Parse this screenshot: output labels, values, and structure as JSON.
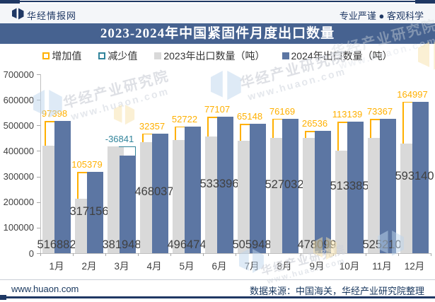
{
  "header": {
    "brand": "华经情报网",
    "tagline": "专业严谨 ● 客观科学"
  },
  "title": "2023-2024年中国紧固件月度出口数量",
  "legend": [
    {
      "label": "增加值",
      "style": "hollow",
      "color": "#FFB000"
    },
    {
      "label": "减少值",
      "style": "hollow",
      "color": "#31849B"
    },
    {
      "label": "2023年出口数量（吨）",
      "style": "fill",
      "color": "#D9D9D9"
    },
    {
      "label": "2024年出口数量（吨）",
      "style": "fill",
      "color": "#5C76A3"
    }
  ],
  "chart_data": {
    "type": "bar",
    "title": "2023-2024年中国紧固件月度出口数量",
    "categories": [
      "1月",
      "2月",
      "3月",
      "4月",
      "5月",
      "6月",
      "7月",
      "8月",
      "9月",
      "10月",
      "11月",
      "12月"
    ],
    "series": [
      {
        "name": "2023年出口数量（吨）",
        "color": "#D9D9D9",
        "values": [
          419484,
          211777,
          418789,
          435680,
          443752,
          456289,
          440800,
          450863,
          451563,
          400246,
          451843,
          428143
        ]
      },
      {
        "name": "2024年出口数量（吨）",
        "color": "#5C76A3",
        "values": [
          516882,
          317156,
          381948,
          468037,
          496474,
          533396,
          505948,
          527032,
          478099,
          513385,
          525210,
          593140
        ]
      },
      {
        "name": "增加值/减少值",
        "increase_color": "#FFB000",
        "decrease_color": "#31849B",
        "values": [
          97398,
          105379,
          -36841,
          32357,
          52722,
          77107,
          65148,
          76169,
          26536,
          113139,
          73367,
          164997
        ]
      }
    ],
    "ylim": [
      0,
      700000
    ],
    "ytick_step": 100000,
    "grid": false,
    "legend_position": "top"
  },
  "watermark": {
    "line1": "华经产业研究院",
    "line2": "www.huaon.com"
  },
  "footer": {
    "site": "www.huaon.com",
    "source": "数据来源：中国海关，华经产业研究院整理"
  }
}
